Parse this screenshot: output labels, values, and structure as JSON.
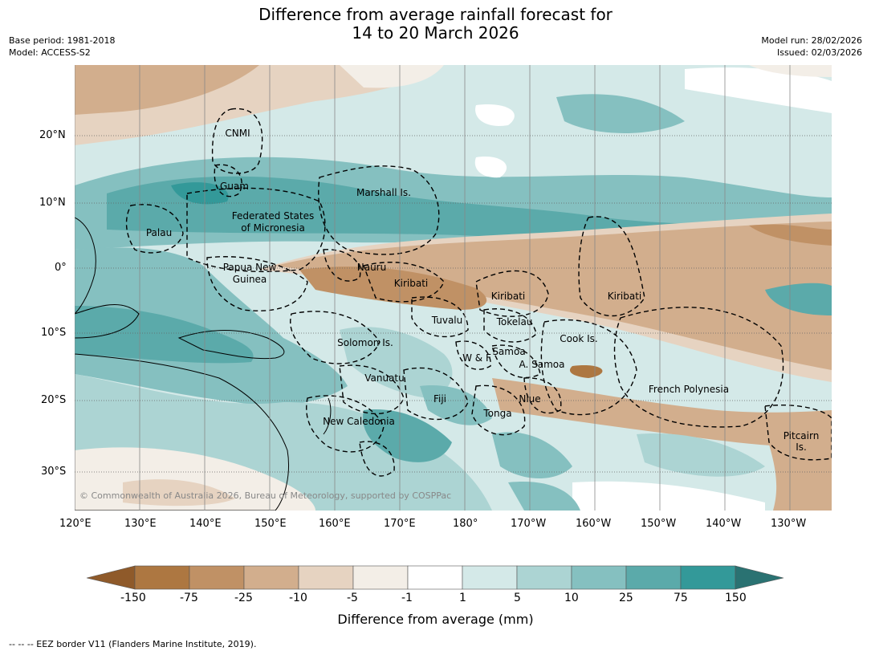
{
  "title": {
    "line1": "Difference from average rainfall forecast for",
    "line2": "14 to 20 March 2026"
  },
  "meta": {
    "base_period": "Base period: 1981-2018",
    "model": "Model: ACCESS-S2",
    "model_run": "Model run: 28/02/2026",
    "issued": "Issued: 02/03/2026"
  },
  "axes": {
    "lat_labels": [
      "20°N",
      "10°N",
      "0°",
      "10°S",
      "20°S",
      "30°S"
    ],
    "lon_labels": [
      "120°E",
      "130°E",
      "140°E",
      "150°E",
      "160°E",
      "170°E",
      "180°",
      "170°W",
      "160°W",
      "150°W",
      "140°W",
      "130°W"
    ]
  },
  "places": [
    "CNMI",
    "Guam",
    "Marshall Is.",
    "Federated States",
    "of Micronesia",
    "Palau",
    "Papua New",
    "Guinea",
    "Nauru",
    "Kiribati",
    "Kiribati",
    "Kiribati",
    "Tuvalu",
    "Tokelau",
    "Solomon Is.",
    "Samoa",
    "W & F",
    "A. Samoa",
    "Cook Is.",
    "Vanuatu",
    "Fiji",
    "Niue",
    "Tonga",
    "French Polynesia",
    "New Caledonia",
    "Pitcairn",
    "Is."
  ],
  "copyright": "© Commonwealth of Australia 2026, Bureau of Meteorology, supported by COSPPac",
  "colorbar": {
    "labels": [
      "-150",
      "-75",
      "-25",
      "-10",
      "-5",
      "-1",
      "1",
      "5",
      "10",
      "25",
      "75",
      "150"
    ],
    "colors": [
      "#8f5a2a",
      "#ad7741",
      "#c09165",
      "#d2ae8d",
      "#e6d3c1",
      "#f3eee7",
      "#ffffff",
      "#d4e9e8",
      "#acd4d3",
      "#85c0c0",
      "#5baaaa",
      "#339999",
      "#2a7272"
    ],
    "title": "Difference from average (mm)"
  },
  "footer": "--  --  -- EEZ border V11 (Flanders Marine Institute, 2019)."
}
